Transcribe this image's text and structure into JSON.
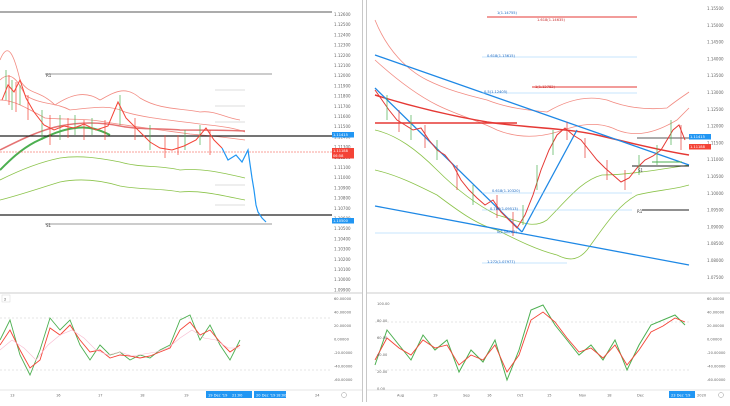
{
  "left_chart": {
    "price_axis": [
      "1.12600",
      "1.12500",
      "1.12400",
      "1.12300",
      "1.12200",
      "1.12100",
      "1.12000",
      "1.11900",
      "1.11800",
      "1.11700",
      "1.11600",
      "1.11500",
      "1.11400",
      "1.11300",
      "1.11200",
      "1.11100",
      "1.11000",
      "1.10900",
      "1.10800",
      "1.10700",
      "1.10600",
      "1.10500",
      "1.10400",
      "1.10300",
      "1.10200",
      "1.10100",
      "1.10000",
      "1.09900"
    ],
    "level_labels": {
      "r1": "R1",
      "s1": "S1"
    },
    "price_tags": [
      {
        "text": "1.11415",
        "color": "#2196f3"
      },
      {
        "text": "1.11188",
        "color": "#f44336"
      },
      {
        "text": "06:58",
        "color": "#f44336"
      },
      {
        "text": "1.10500",
        "color": "#2196f3"
      }
    ],
    "osc_axis": [
      "60.00000",
      "40.00000",
      "20.00000",
      "0.00000",
      "-20.00000",
      "-40.00000",
      "-60.00000"
    ],
    "osc_label": "2",
    "time_axis": [
      "13",
      "16",
      "17",
      "18",
      "19"
    ],
    "time_tags": [
      "19 Dec '19",
      "21:00",
      "20 Dec '19",
      "18:00"
    ],
    "time_tail": "24"
  },
  "right_chart": {
    "price_axis": [
      "1.15500",
      "1.15000",
      "1.14500",
      "1.14000",
      "1.13500",
      "1.13000",
      "1.12500",
      "1.12000",
      "1.11500",
      "1.11000",
      "1.10500",
      "1.10000",
      "1.09500",
      "1.09000",
      "1.08500",
      "1.08000",
      "1.07500"
    ],
    "fib_labels": [
      {
        "text": "1(1.14755)",
        "color": "#1565c0"
      },
      {
        "text": "1.618(1.14635)",
        "color": "#c62828"
      },
      {
        "text": "0.618(1.13615)",
        "color": "#1565c0"
      },
      {
        "text": "1(1.12782)",
        "color": "#c62828"
      },
      {
        "text": "0.5(1.12405)",
        "color": "#1565c0"
      },
      {
        "text": "0.618(1.10320)",
        "color": "#1565c0"
      },
      {
        "text": "0.786(1.09513)",
        "color": "#1565c0"
      },
      {
        "text": "0(1.08782)",
        "color": "#1565c0"
      },
      {
        "text": "1.272(1.07977)",
        "color": "#1565c0"
      }
    ],
    "level_labels": {
      "s1": "S1",
      "r1": "R1"
    },
    "price_tags": [
      {
        "text": "1.11415",
        "color": "#2196f3"
      },
      {
        "text": "1.11188",
        "color": "#f44336"
      }
    ],
    "osc_axis": [
      "100.00",
      "80.00",
      "60.00",
      "40.00",
      "20.00",
      "0.00"
    ],
    "osc_axis_right": [
      "60.00000",
      "40.00000",
      "20.00000",
      "0.00000",
      "-20.00000",
      "-40.00000",
      "-60.00000"
    ],
    "time_axis": [
      "Aug",
      "19",
      "Sep",
      "16",
      "Oct",
      "15",
      "Nov",
      "18",
      "Dec"
    ],
    "time_tags": [
      "23 Dec '19"
    ],
    "time_tail": "2020"
  }
}
